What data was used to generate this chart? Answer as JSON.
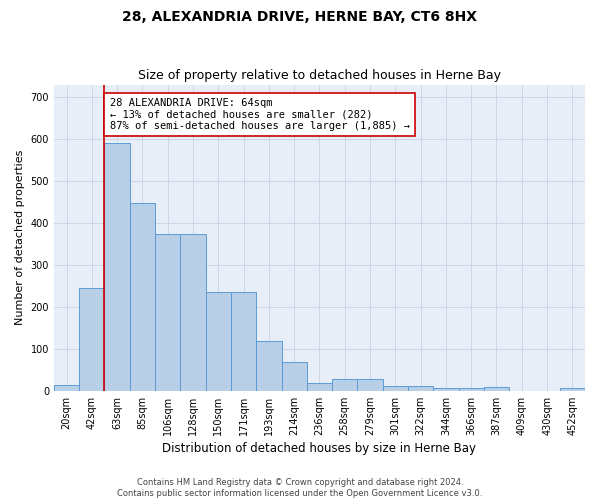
{
  "title": "28, ALEXANDRIA DRIVE, HERNE BAY, CT6 8HX",
  "subtitle": "Size of property relative to detached houses in Herne Bay",
  "xlabel": "Distribution of detached houses by size in Herne Bay",
  "ylabel": "Number of detached properties",
  "categories": [
    "20sqm",
    "42sqm",
    "63sqm",
    "85sqm",
    "106sqm",
    "128sqm",
    "150sqm",
    "171sqm",
    "193sqm",
    "214sqm",
    "236sqm",
    "258sqm",
    "279sqm",
    "301sqm",
    "322sqm",
    "344sqm",
    "366sqm",
    "387sqm",
    "409sqm",
    "430sqm",
    "452sqm"
  ],
  "values": [
    15,
    245,
    590,
    447,
    373,
    373,
    235,
    235,
    118,
    68,
    18,
    27,
    27,
    11,
    11,
    6,
    6,
    8,
    0,
    0,
    6
  ],
  "bar_color": "#b8cfe8",
  "bar_edge_color": "#5b9bd5",
  "vline_color": "#cc0000",
  "vline_x": 1.5,
  "annotation_text": "28 ALEXANDRIA DRIVE: 64sqm\n← 13% of detached houses are smaller (282)\n87% of semi-detached houses are larger (1,885) →",
  "annotation_box_facecolor": "#ffffff",
  "annotation_box_edgecolor": "#cc0000",
  "ylim": [
    0,
    730
  ],
  "yticks": [
    0,
    100,
    200,
    300,
    400,
    500,
    600,
    700
  ],
  "grid_color": "#ccd6e8",
  "background_color": "#e8eef8",
  "footer_text": "Contains HM Land Registry data © Crown copyright and database right 2024.\nContains public sector information licensed under the Open Government Licence v3.0.",
  "title_fontsize": 10,
  "subtitle_fontsize": 9,
  "xlabel_fontsize": 8.5,
  "ylabel_fontsize": 8,
  "tick_fontsize": 7,
  "annotation_fontsize": 7.5,
  "footer_fontsize": 6
}
